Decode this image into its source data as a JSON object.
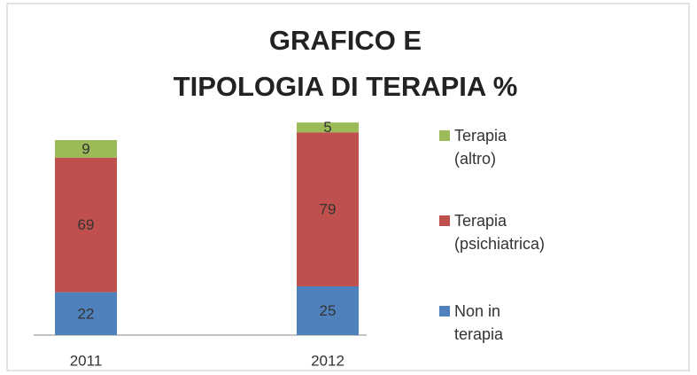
{
  "chart_data": {
    "type": "stacked_bar",
    "title": [
      "GRAFICO E",
      "TIPOLOGIA DI TERAPIA %"
    ],
    "categories": [
      "2011",
      "2012"
    ],
    "series": [
      {
        "name": "Non in terapia",
        "color": "#4f81bd",
        "values": [
          22,
          25
        ]
      },
      {
        "name": "Terapia (psichiatrica)",
        "color": "#c0504d",
        "values": [
          69,
          79
        ]
      },
      {
        "name": "Terapia (altro)",
        "color": "#9bbb59",
        "values": [
          9,
          5
        ]
      }
    ],
    "ylim": [
      0,
      110
    ],
    "legend": "right"
  }
}
